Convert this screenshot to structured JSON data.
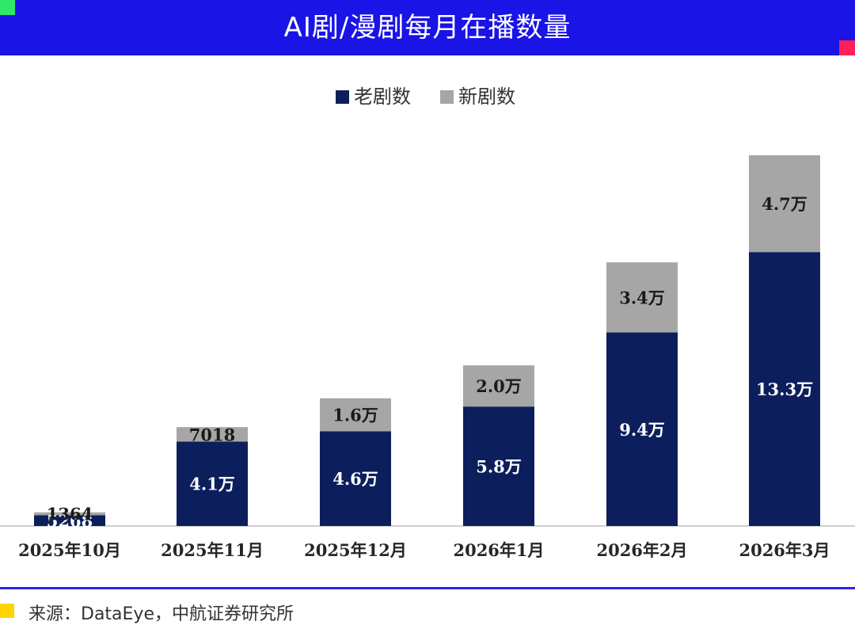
{
  "header": {
    "title": "AI剧/漫剧每月在播数量"
  },
  "colors": {
    "title_bg": "#1a14e6",
    "old_series": "#0c1f5c",
    "new_series": "#a6a6a6",
    "accent_green": "#2ee86a",
    "accent_red": "#ff1f5a",
    "accent_yellow": "#ffd400",
    "rule": "#3324e8"
  },
  "source": {
    "text": "来源：DataEye，中航证券研究所"
  },
  "chart_data": {
    "type": "bar",
    "stacked": true,
    "title": "",
    "xlabel": "",
    "ylabel": "",
    "legend_position": "top-center",
    "categories": [
      "2025年10月",
      "2025年11月",
      "2025年12月",
      "2026年1月",
      "2026年2月",
      "2026年3月"
    ],
    "series": [
      {
        "name": "老剧数",
        "color": "#0c1f5c",
        "values": [
          5268,
          41000,
          46000,
          58000,
          94000,
          133000
        ],
        "labels": [
          "5268",
          "4.1万",
          "4.6万",
          "5.8万",
          "9.4万",
          "13.3万"
        ]
      },
      {
        "name": "新剧数",
        "color": "#a6a6a6",
        "values": [
          1364,
          7018,
          16000,
          20000,
          34000,
          47000
        ],
        "labels": [
          "1364",
          "7018",
          "1.6万",
          "2.0万",
          "3.4万",
          "4.7万"
        ]
      }
    ]
  }
}
